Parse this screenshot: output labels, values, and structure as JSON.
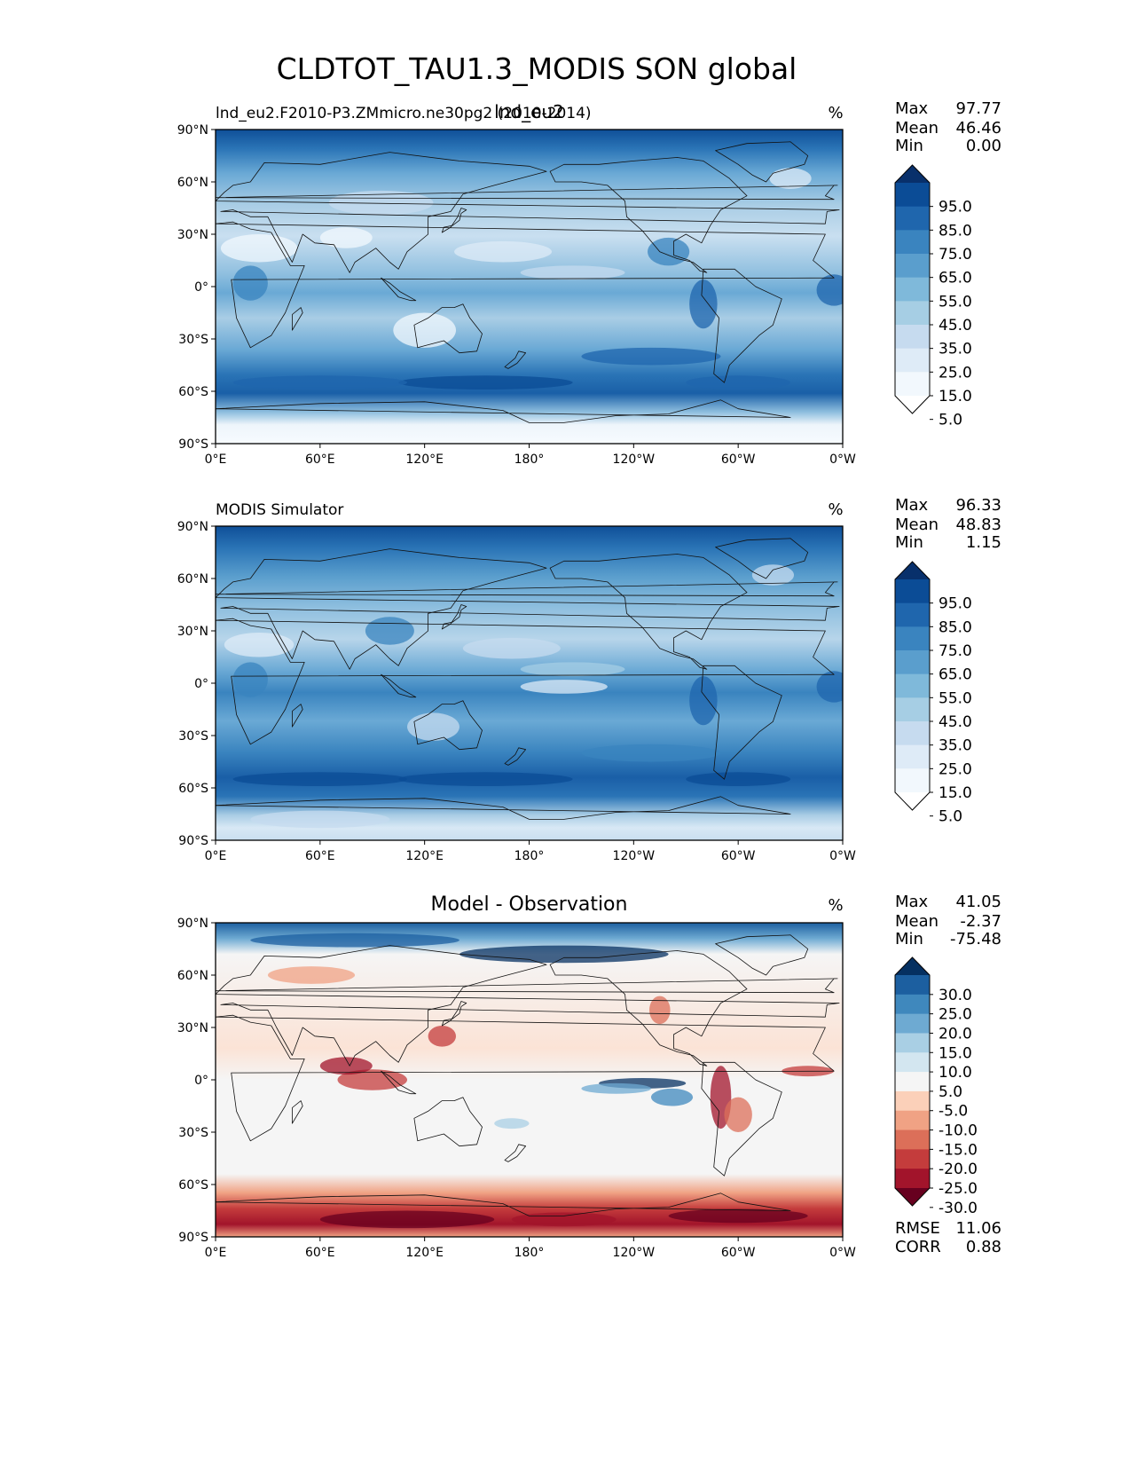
{
  "figure": {
    "suptitle": "CLDTOT_TAU1.3_MODIS SON global"
  },
  "chart_data": [
    {
      "type": "heatmap",
      "subtype": "filled-contour world map (cylindrical projection, coastlines)",
      "left_title": "lnd_eu2.F2010-P3.ZMmicro.ne30pg2 (2010-2014)",
      "center_title": "lnd_eu2",
      "units": "%",
      "stats": {
        "max_label": "Max",
        "max": "97.77",
        "mean_label": "Mean",
        "mean": "46.46",
        "min_label": "Min",
        "min": "0.00"
      },
      "xlim": [
        0,
        360
      ],
      "ylim": [
        -90,
        90
      ],
      "x_ticks": [
        "0°E",
        "60°E",
        "120°E",
        "180°",
        "120°W",
        "60°W",
        "0°W"
      ],
      "y_ticks": [
        "90°N",
        "60°N",
        "30°N",
        "0°",
        "30°S",
        "60°S",
        "90°S"
      ],
      "colormap": "Blues",
      "colorbar": {
        "extend": "both",
        "levels": [
          5,
          15,
          25,
          35,
          45,
          55,
          65,
          75,
          85,
          95
        ],
        "tick_labels": [
          "95.0",
          "85.0",
          "75.0",
          "65.0",
          "55.0",
          "45.0",
          "35.0",
          "25.0",
          "15.0",
          "5.0"
        ],
        "colors": [
          "#ffffff",
          "#f2f8fd",
          "#deebf7",
          "#c6dbef",
          "#a6cee4",
          "#7fb9da",
          "#5a9ecd",
          "#3a84bf",
          "#1f66ad",
          "#0b4c96",
          "#08306b"
        ]
      }
    },
    {
      "type": "heatmap",
      "subtype": "filled-contour world map (cylindrical projection, coastlines)",
      "left_title": "MODIS Simulator",
      "center_title": "",
      "units": "%",
      "stats": {
        "max_label": "Max",
        "max": "96.33",
        "mean_label": "Mean",
        "mean": "48.83",
        "min_label": "Min",
        "min": "1.15"
      },
      "xlim": [
        0,
        360
      ],
      "ylim": [
        -90,
        90
      ],
      "x_ticks": [
        "0°E",
        "60°E",
        "120°E",
        "180°",
        "120°W",
        "60°W",
        "0°W"
      ],
      "y_ticks": [
        "90°N",
        "60°N",
        "30°N",
        "0°",
        "30°S",
        "60°S",
        "90°S"
      ],
      "colormap": "Blues",
      "colorbar": {
        "extend": "both",
        "levels": [
          5,
          15,
          25,
          35,
          45,
          55,
          65,
          75,
          85,
          95
        ],
        "tick_labels": [
          "95.0",
          "85.0",
          "75.0",
          "65.0",
          "55.0",
          "45.0",
          "35.0",
          "25.0",
          "15.0",
          "5.0"
        ],
        "colors": [
          "#ffffff",
          "#f2f8fd",
          "#deebf7",
          "#c6dbef",
          "#a6cee4",
          "#7fb9da",
          "#5a9ecd",
          "#3a84bf",
          "#1f66ad",
          "#0b4c96",
          "#08306b"
        ]
      }
    },
    {
      "type": "heatmap",
      "subtype": "filled-contour world map difference (cylindrical projection, coastlines)",
      "left_title": "",
      "center_title": "Model - Observation",
      "units": "%",
      "stats": {
        "max_label": "Max",
        "max": "41.05",
        "mean_label": "Mean",
        "mean": "-2.37",
        "min_label": "Min",
        "min": "-75.48"
      },
      "extra_stats": {
        "rmse_label": "RMSE",
        "rmse": "11.06",
        "corr_label": "CORR",
        "corr": "0.88"
      },
      "xlim": [
        0,
        360
      ],
      "ylim": [
        -90,
        90
      ],
      "x_ticks": [
        "0°E",
        "60°E",
        "120°E",
        "180°",
        "120°W",
        "60°W",
        "0°W"
      ],
      "y_ticks": [
        "90°N",
        "60°N",
        "30°N",
        "0°",
        "30°S",
        "60°S",
        "90°S"
      ],
      "colormap": "RdBu",
      "colorbar": {
        "extend": "both",
        "levels": [
          -30,
          -25,
          -20,
          -15,
          -10,
          -5,
          5,
          10,
          15,
          20,
          25,
          30
        ],
        "tick_labels": [
          "30.0",
          "25.0",
          "20.0",
          "15.0",
          "10.0",
          "5.0",
          "-5.0",
          "-10.0",
          "-15.0",
          "-20.0",
          "-25.0",
          "-30.0"
        ],
        "colors": [
          "#67001f",
          "#a2142b",
          "#c43c3c",
          "#dc6f59",
          "#f0a284",
          "#fbd0b9",
          "#f5f5f5",
          "#d3e6f0",
          "#a9cfe4",
          "#6eaad2",
          "#3f88bd",
          "#1c5fa0",
          "#053061"
        ]
      }
    }
  ]
}
